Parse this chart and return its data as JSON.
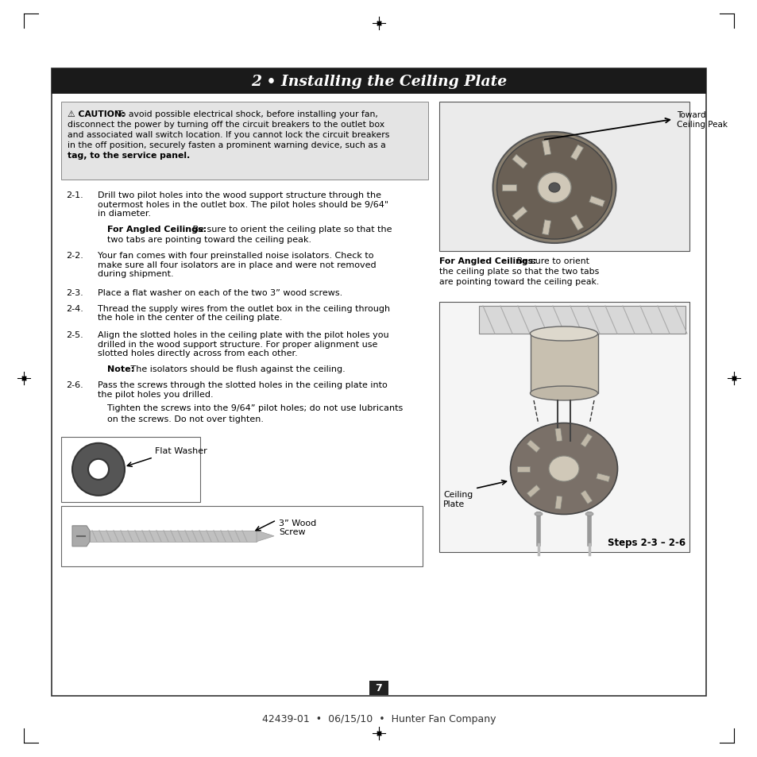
{
  "title": "2 • Installing the Ceiling Plate",
  "title_bg": "#1a1a1a",
  "title_color": "#ffffff",
  "page_bg": "#ffffff",
  "footer_text": "42439-01  •  06/15/10  •  Hunter Fan Company",
  "page_number": "7",
  "caution_title": "⚠ CAUTION:",
  "img1_label": "Toward\nCeiling Peak",
  "img1_caption_bold": "For Angled Ceilings:",
  "img1_caption_rest": " Be sure to orient\nthe ceiling plate so that the two tabs\nare pointing toward the ceiling peak.",
  "img2_caption": "Steps 2-3 – 2-6",
  "flat_washer_label": "Flat Washer",
  "wood_screw_label": "3” Wood\nScrew",
  "steps": [
    {
      "num": "2-1.",
      "text": "Drill two pilot holes into the wood support structure through the\noutermost holes in the outlet box. The pilot holes should be 9/64\"\nin diameter.",
      "sub_bold": "For Angled Ceilings:",
      "sub_rest": " Be sure to orient the ceiling plate so that the\ntwo tabs are pointing toward the ceiling peak."
    },
    {
      "num": "2-2.",
      "text": "Your fan comes with four preinstalled noise isolators. Check to\nmake sure all four isolators are in place and were not removed\nduring shipment.",
      "sub_bold": null,
      "sub_rest": null
    },
    {
      "num": "2-3.",
      "text": "Place a flat washer on each of the two 3” wood screws.",
      "sub_bold": null,
      "sub_rest": null
    },
    {
      "num": "2-4.",
      "text": "Thread the supply wires from the outlet box in the ceiling through\nthe hole in the center of the ceiling plate.",
      "sub_bold": null,
      "sub_rest": null
    },
    {
      "num": "2-5.",
      "text": "Align the slotted holes in the ceiling plate with the pilot holes you\ndrilled in the wood support structure. For proper alignment use\nslotted holes directly across from each other.",
      "sub_bold": "Note:",
      "sub_rest": " The isolators should be flush against the ceiling."
    },
    {
      "num": "2-6.",
      "text": "Pass the screws through the slotted holes in the ceiling plate into\nthe pilot holes you drilled.",
      "sub_bold": null,
      "sub_rest": "Tighten the screws into the 9/64” pilot holes; do not use lubricants\non the screws. Do not over tighten."
    }
  ]
}
